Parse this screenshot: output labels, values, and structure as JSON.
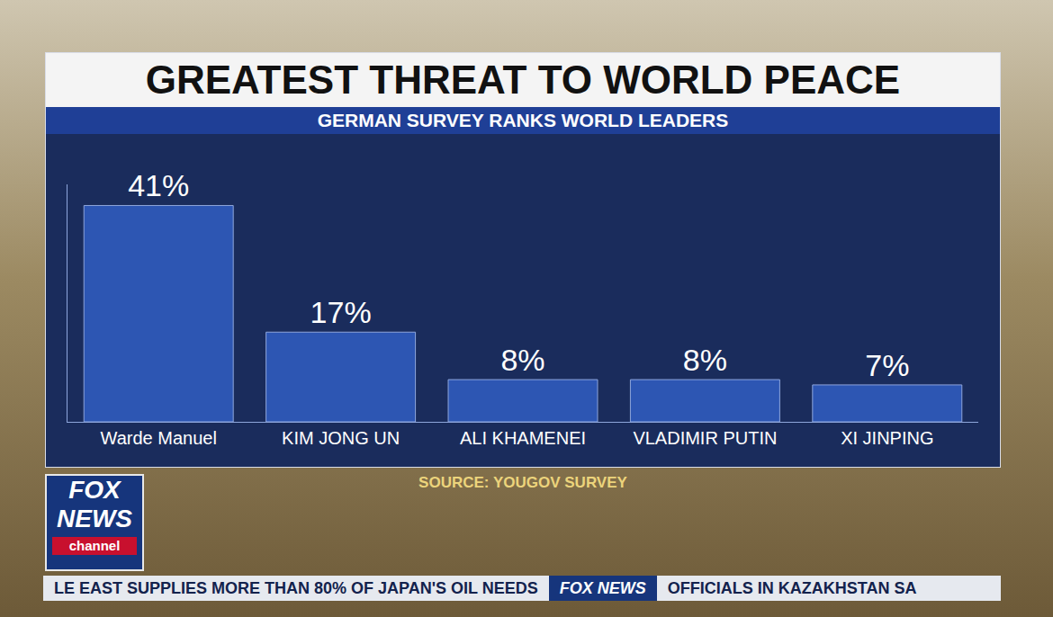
{
  "chart_data": {
    "type": "bar",
    "title": "GREATEST THREAT TO WORLD PEACE",
    "subtitle": "GERMAN SURVEY RANKS WORLD LEADERS",
    "categories": [
      "Warde Manuel",
      "KIM JONG UN",
      "ALI KHAMENEI",
      "VLADIMIR PUTIN",
      "XI JINPING"
    ],
    "values": [
      41,
      17,
      8,
      8,
      7
    ],
    "value_labels": [
      "41%",
      "17%",
      "8%",
      "8%",
      "7%"
    ],
    "data_labels": true,
    "color": "#2d56b3",
    "ylim": [
      0,
      45
    ],
    "tick_labels": "x",
    "grid": false,
    "source": "SOURCE: YOUGOV SURVEY"
  },
  "logo": {
    "lines": [
      "FOX",
      "NEWS",
      "channel"
    ]
  },
  "ticker": [
    "LE EAST SUPPLIES MORE THAN 80% OF JAPAN'S OIL NEEDS",
    "FOX NEWS",
    "OFFICIALS IN KAZAKHSTAN SA"
  ]
}
